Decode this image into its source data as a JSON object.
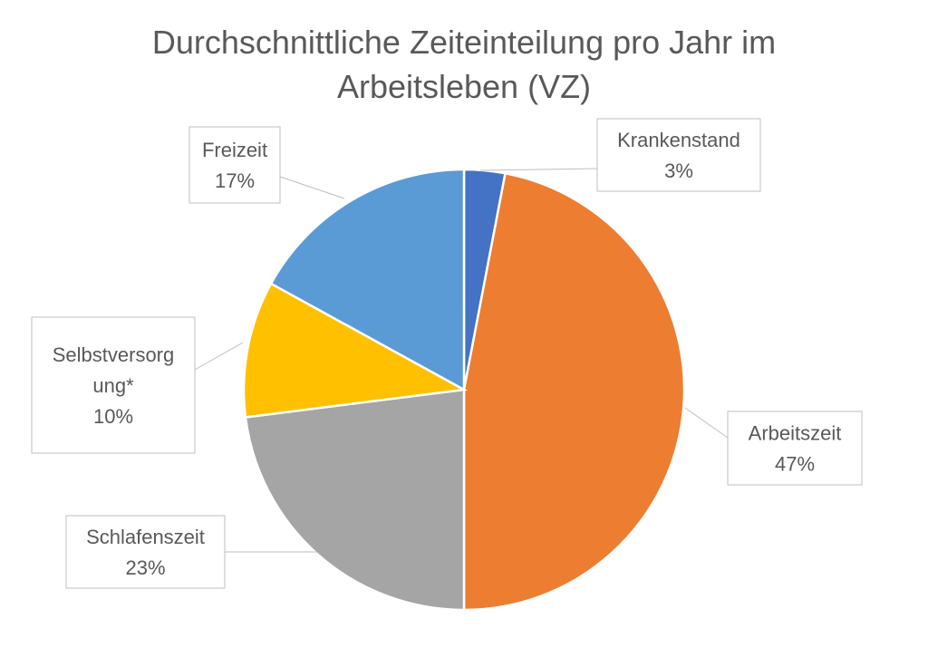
{
  "chart_data": {
    "type": "pie",
    "title": "Durchschnittliche Zeiteinteilung pro Jahr im Arbeitsleben (VZ)",
    "title_lines": [
      "Durchschnittliche Zeiteinteilung pro Jahr im",
      "Arbeitsleben (VZ)"
    ],
    "slices": [
      {
        "label": "Krankenstand",
        "label_lines": [
          "Krankenstand"
        ],
        "value": 3,
        "value_label": "3%",
        "color": "#4472C4"
      },
      {
        "label": "Arbeitszeit",
        "label_lines": [
          "Arbeitszeit"
        ],
        "value": 47,
        "value_label": "47%",
        "color": "#ED7D31"
      },
      {
        "label": "Schlafenszeit",
        "label_lines": [
          "Schlafenszeit"
        ],
        "value": 23,
        "value_label": "23%",
        "color": "#A5A5A5"
      },
      {
        "label": "Selbstversorgung*",
        "label_lines": [
          "Selbstversorg",
          "ung*"
        ],
        "value": 10,
        "value_label": "10%",
        "color": "#FFC000"
      },
      {
        "label": "Freizeit",
        "label_lines": [
          "Freizeit"
        ],
        "value": 17,
        "value_label": "17%",
        "color": "#5B9BD5"
      }
    ],
    "start_angle_deg": 0,
    "direction": "clockwise",
    "legend": "none",
    "data_labels": "callout"
  }
}
